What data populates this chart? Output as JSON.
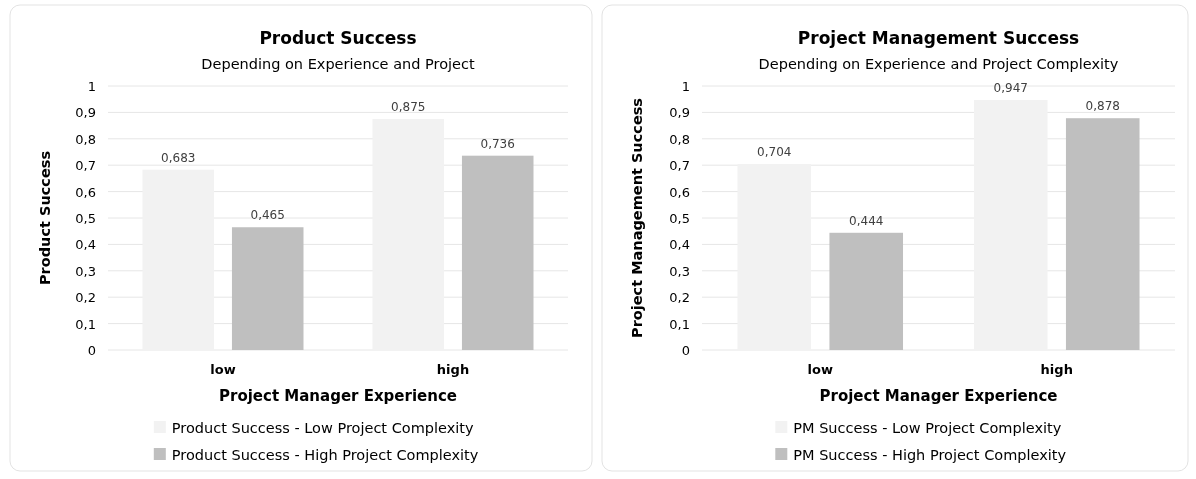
{
  "chart_data": [
    {
      "type": "bar",
      "title": "Product Success",
      "subtitle": "Depending on Experience and Project",
      "xlabel": "Project Manager Experience",
      "ylabel": "Product Success",
      "categories": [
        "low",
        "high"
      ],
      "series": [
        {
          "name": "Product Success - Low Project Complexity",
          "color": "#f2f2f2",
          "values": [
            0.683,
            0.875
          ],
          "value_labels": [
            "0,683",
            "0,875"
          ]
        },
        {
          "name": "Product Success - High Project Complexity",
          "color": "#bfbfbf",
          "values": [
            0.465,
            0.736
          ],
          "value_labels": [
            "0,465",
            "0,736"
          ]
        }
      ],
      "ylim": [
        0,
        1
      ],
      "yticks": [
        {
          "value": 0,
          "label": "0"
        },
        {
          "value": 0.1,
          "label": "0,1"
        },
        {
          "value": 0.2,
          "label": "0,2"
        },
        {
          "value": 0.3,
          "label": "0,3"
        },
        {
          "value": 0.4,
          "label": "0,4"
        },
        {
          "value": 0.5,
          "label": "0,5"
        },
        {
          "value": 0.6,
          "label": "0,6"
        },
        {
          "value": 0.7,
          "label": "0,7"
        },
        {
          "value": 0.8,
          "label": "0,8"
        },
        {
          "value": 0.9,
          "label": "0,9"
        },
        {
          "value": 1,
          "label": "1"
        }
      ],
      "grid": "y",
      "legend": "bottom"
    },
    {
      "type": "bar",
      "title": "Project Management Success",
      "subtitle": "Depending on Experience and Project Complexity",
      "xlabel": "Project Manager Experience",
      "ylabel": "Project Management Success",
      "categories": [
        "low",
        "high"
      ],
      "series": [
        {
          "name": "PM Success - Low Project Complexity",
          "color": "#f2f2f2",
          "values": [
            0.704,
            0.947
          ],
          "value_labels": [
            "0,704",
            "0,947"
          ]
        },
        {
          "name": "PM Success - High Project Complexity",
          "color": "#bfbfbf",
          "values": [
            0.444,
            0.878
          ],
          "value_labels": [
            "0,444",
            "0,878"
          ]
        }
      ],
      "ylim": [
        0,
        1
      ],
      "yticks": [
        {
          "value": 0,
          "label": "0"
        },
        {
          "value": 0.1,
          "label": "0,1"
        },
        {
          "value": 0.2,
          "label": "0,2"
        },
        {
          "value": 0.3,
          "label": "0,3"
        },
        {
          "value": 0.4,
          "label": "0,4"
        },
        {
          "value": 0.5,
          "label": "0,5"
        },
        {
          "value": 0.6,
          "label": "0,6"
        },
        {
          "value": 0.7,
          "label": "0,7"
        },
        {
          "value": 0.8,
          "label": "0,8"
        },
        {
          "value": 0.9,
          "label": "0,9"
        },
        {
          "value": 1,
          "label": "1"
        }
      ],
      "grid": "y",
      "legend": "bottom"
    }
  ]
}
